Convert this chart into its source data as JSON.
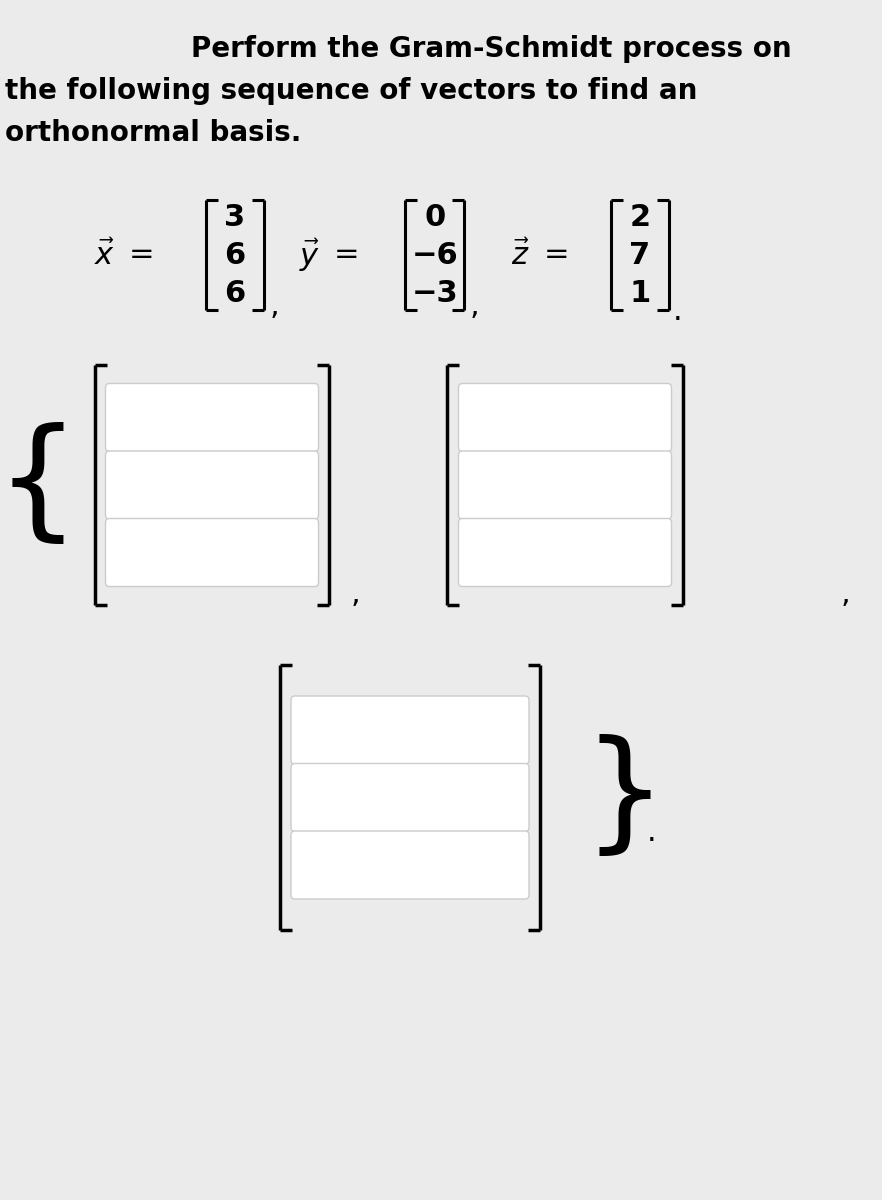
{
  "bg_color": "#ebebeb",
  "title_lines": [
    "Perform the Gram-Schmidt process on",
    "the following sequence of vectors to find an",
    "orthonormal basis."
  ],
  "title_fontsize": 20,
  "vector_x": [
    "3",
    "6",
    "6"
  ],
  "vector_y": [
    "0",
    "−6",
    "−3"
  ],
  "vector_z": [
    "2",
    "7",
    "1"
  ],
  "box_fill": "#ffffff",
  "box_edge": "#cccccc",
  "bracket_color": "#000000",
  "fig_width": 8.82,
  "fig_height": 12.0
}
